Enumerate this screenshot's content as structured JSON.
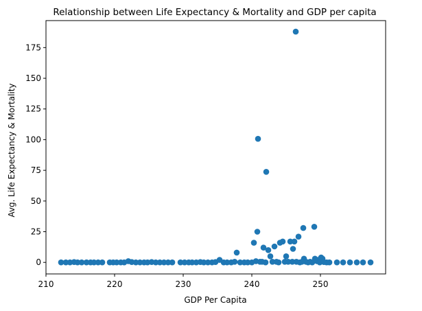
{
  "chart_data": {
    "type": "scatter",
    "title": "Relationship between Life Expectancy & Mortality and GDP per capita",
    "xlabel": "GDP Per Capita",
    "ylabel": "Avg. Life Expectancy & Mortality",
    "xlim": [
      210,
      259.5
    ],
    "ylim": [
      -9.4,
      197
    ],
    "xticks": [
      210,
      220,
      230,
      240,
      250
    ],
    "yticks": [
      0,
      25,
      50,
      75,
      100,
      125,
      150,
      175
    ],
    "grid": false,
    "marker_color": "#1f77b4",
    "points": [
      [
        212.2,
        0
      ],
      [
        212.9,
        0
      ],
      [
        213.5,
        0
      ],
      [
        214.1,
        0.3
      ],
      [
        214.6,
        0
      ],
      [
        215.2,
        0
      ],
      [
        215.9,
        0
      ],
      [
        216.5,
        0
      ],
      [
        217.0,
        0
      ],
      [
        217.6,
        0
      ],
      [
        218.2,
        0
      ],
      [
        219.3,
        0
      ],
      [
        219.8,
        0
      ],
      [
        220.3,
        0
      ],
      [
        220.9,
        0
      ],
      [
        221.4,
        0
      ],
      [
        222.0,
        1.0
      ],
      [
        222.5,
        0.3
      ],
      [
        223.1,
        0
      ],
      [
        223.7,
        0
      ],
      [
        224.3,
        0
      ],
      [
        224.8,
        0
      ],
      [
        225.4,
        0.3
      ],
      [
        226.0,
        0
      ],
      [
        226.6,
        0
      ],
      [
        227.2,
        0
      ],
      [
        227.8,
        0
      ],
      [
        228.4,
        0
      ],
      [
        229.6,
        0
      ],
      [
        230.2,
        0
      ],
      [
        230.8,
        0
      ],
      [
        231.3,
        0
      ],
      [
        231.9,
        0
      ],
      [
        232.5,
        0.3
      ],
      [
        233.0,
        0
      ],
      [
        233.6,
        0
      ],
      [
        234.2,
        0
      ],
      [
        234.7,
        0.3
      ],
      [
        235.3,
        2.0
      ],
      [
        235.9,
        0
      ],
      [
        236.4,
        0
      ],
      [
        237.0,
        0
      ],
      [
        237.5,
        0.5
      ],
      [
        237.8,
        8.0
      ],
      [
        238.3,
        0
      ],
      [
        238.9,
        0
      ],
      [
        239.4,
        0
      ],
      [
        240.0,
        0
      ],
      [
        240.3,
        16.0
      ],
      [
        240.6,
        1.0
      ],
      [
        240.8,
        25.0
      ],
      [
        240.9,
        100.7
      ],
      [
        241.2,
        0.5
      ],
      [
        241.5,
        0.5
      ],
      [
        241.7,
        12.0
      ],
      [
        242.0,
        0
      ],
      [
        242.1,
        73.8
      ],
      [
        242.4,
        10.0
      ],
      [
        242.7,
        5.0
      ],
      [
        243.0,
        0.5
      ],
      [
        243.3,
        13.0
      ],
      [
        243.6,
        0.5
      ],
      [
        243.9,
        0
      ],
      [
        244.1,
        16.0
      ],
      [
        244.5,
        17.0
      ],
      [
        244.8,
        0.5
      ],
      [
        245.0,
        5.0
      ],
      [
        245.3,
        0.5
      ],
      [
        245.6,
        17.0
      ],
      [
        245.9,
        0.5
      ],
      [
        246.0,
        11.0
      ],
      [
        246.2,
        17.0
      ],
      [
        246.4,
        188.0
      ],
      [
        246.5,
        0.5
      ],
      [
        246.8,
        21.0
      ],
      [
        247.0,
        0
      ],
      [
        247.3,
        0.5
      ],
      [
        247.5,
        28.0
      ],
      [
        247.6,
        3.0
      ],
      [
        247.9,
        0.5
      ],
      [
        248.2,
        0
      ],
      [
        248.5,
        0.5
      ],
      [
        248.8,
        0
      ],
      [
        249.1,
        29.0
      ],
      [
        249.2,
        3.0
      ],
      [
        249.5,
        1.0
      ],
      [
        249.7,
        2.0
      ],
      [
        249.9,
        0
      ],
      [
        250.1,
        4.0
      ],
      [
        250.3,
        3.0
      ],
      [
        250.5,
        0.3
      ],
      [
        250.9,
        0
      ],
      [
        251.3,
        0
      ],
      [
        252.4,
        0
      ],
      [
        253.3,
        0
      ],
      [
        254.3,
        0
      ],
      [
        255.3,
        0
      ],
      [
        256.2,
        0
      ],
      [
        257.3,
        0
      ]
    ]
  }
}
